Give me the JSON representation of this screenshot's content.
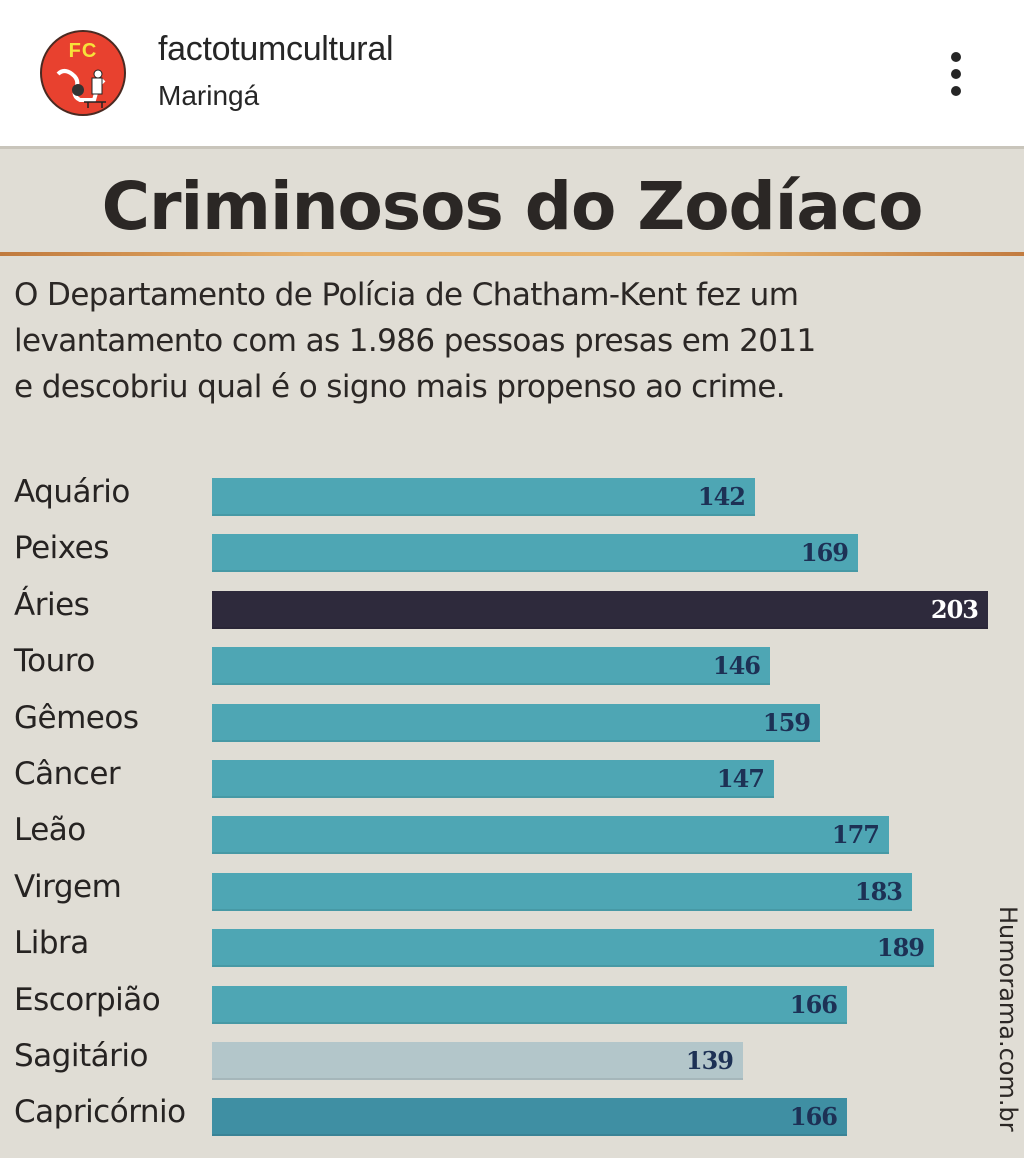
{
  "header": {
    "username": "factotumcultural",
    "location": "Maringá",
    "avatar_text": "FC",
    "more_icon": "more-vertical-icon"
  },
  "post": {
    "title": "Criminosos do Zodíaco",
    "subtitle_lines": [
      "O Departamento de Polícia de Chatham-Kent fez um",
      "levantamento com as 1.986 pessoas presas em 2011",
      "e descobriu qual é o signo mais propenso ao crime."
    ],
    "watermark": "Humorama.com.br"
  },
  "colors": {
    "bar_default": "#4ea6b4",
    "bar_highlight": "#2e2a3c",
    "bar_light": "#b3c6ca",
    "bar_dark": "#3f8fa3",
    "background": "#e0ddd5",
    "title_rule": "#e0a45e"
  },
  "chart_data": {
    "type": "bar",
    "orientation": "horizontal",
    "title": "Criminosos do Zodíaco",
    "subtitle": "O Departamento de Polícia de Chatham-Kent fez um levantamento com as 1.986 pessoas presas em 2011 e descobriu qual é o signo mais propenso ao crime.",
    "categories": [
      "Aquário",
      "Peixes",
      "Áries",
      "Touro",
      "Gêmeos",
      "Câncer",
      "Leão",
      "Virgem",
      "Libra",
      "Escorpião",
      "Sagitário",
      "Capricórnio"
    ],
    "values": [
      142,
      169,
      203,
      146,
      159,
      147,
      177,
      183,
      189,
      166,
      139,
      166
    ],
    "highlight": "Áries",
    "xlabel": "",
    "ylabel": "",
    "xlim": [
      0,
      203
    ],
    "grid": false,
    "data_labels": true,
    "legend": null
  }
}
